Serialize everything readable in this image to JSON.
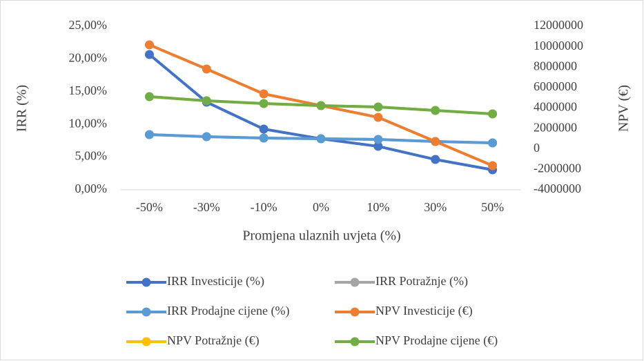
{
  "chart_data": {
    "type": "line",
    "x_label": "Promjena ulaznih uvjeta (%)",
    "y_label": "IRR (%)",
    "y2_label": "NPV (€)",
    "categories": [
      "-50%",
      "-30%",
      "-10%",
      "0%",
      "10%",
      "30%",
      "50%"
    ],
    "ylim": [
      0,
      25
    ],
    "yticks": [
      {
        "value": 0,
        "label": "0,00%"
      },
      {
        "value": 5,
        "label": "5,00%"
      },
      {
        "value": 10,
        "label": "10,00%"
      },
      {
        "value": 15,
        "label": "15,00%"
      },
      {
        "value": 20,
        "label": "20,00%"
      },
      {
        "value": 25,
        "label": "25,00%"
      }
    ],
    "y2lim": [
      -4000000,
      12000000
    ],
    "y2ticks": [
      -4000000,
      -2000000,
      0,
      2000000,
      4000000,
      6000000,
      8000000,
      10000000,
      12000000
    ],
    "grid": false,
    "legend": "bottom",
    "series": [
      {
        "name": "IRR Investicije (%)",
        "color": "#4472c4",
        "values": [
          20.68,
          13.4,
          9.28,
          7.8,
          6.65,
          4.64,
          3.06
        ]
      },
      {
        "name": "IRR Potražnje (%)",
        "color": "#a5a5a5",
        "values": [
          8.44,
          8.12,
          7.91,
          7.8,
          7.7,
          7.38,
          7.17
        ]
      },
      {
        "name": "IRR Prodajne cijene (%)",
        "color": "#5b9bd5",
        "values": [
          8.44,
          8.12,
          7.91,
          7.8,
          7.7,
          7.38,
          7.17
        ]
      },
      {
        "name": "NPV Investicije (€)",
        "color": "#ed7d31",
        "axis": "y2",
        "values": [
          10180000,
          7814000,
          5384000,
          4236000,
          3089000,
          726000,
          -1637000
        ]
      },
      {
        "name": "NPV Potražnje (€)",
        "color": "#ffc000",
        "axis": "y2",
        "values": [
          5114000,
          4709000,
          4439000,
          4236000,
          4101000,
          3764000,
          3426000
        ]
      },
      {
        "name": "NPV Prodajne cijene (€)",
        "color": "#70ad47",
        "axis": "y2",
        "values": [
          5114000,
          4709000,
          4439000,
          4236000,
          4101000,
          3764000,
          3426000
        ]
      }
    ]
  }
}
